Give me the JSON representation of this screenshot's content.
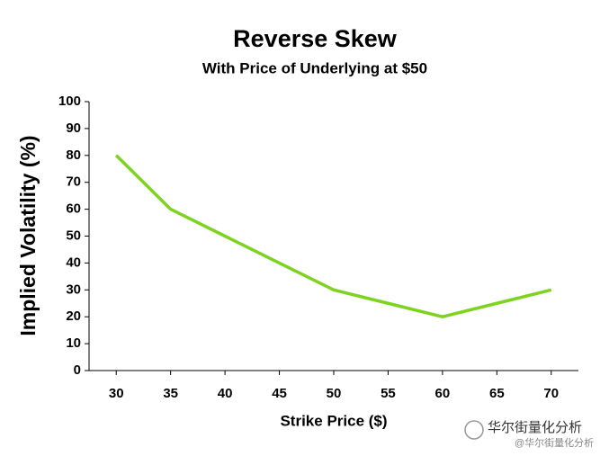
{
  "chart_data": {
    "type": "line",
    "title": "Reverse Skew",
    "subtitle": "With Price of Underlying at $50",
    "x_label": "Strike Price ($)",
    "y_label": "Implied Volatility (%)",
    "x": [
      30,
      35,
      40,
      45,
      50,
      55,
      60,
      65,
      70
    ],
    "values": [
      80,
      60,
      50,
      40,
      30,
      25,
      20,
      25,
      30
    ],
    "color": "#7ed321",
    "xlim": [
      27.5,
      72.5
    ],
    "xticks": [
      30,
      35,
      40,
      45,
      50,
      55,
      60,
      65,
      70
    ],
    "ylim": [
      0,
      100
    ],
    "yticks": [
      0,
      10,
      20,
      30,
      40,
      50,
      60,
      70,
      80,
      90,
      100
    ],
    "grid": false
  },
  "watermark": {
    "line1": "华尔街量化分析",
    "line2": "@华尔街量化分析"
  }
}
